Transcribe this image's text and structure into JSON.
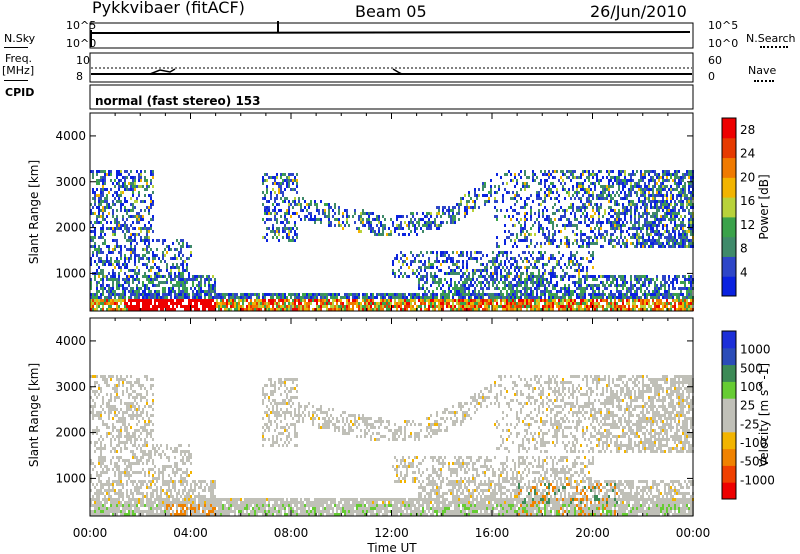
{
  "header": {
    "station": "Pykkvibaer (fitACF)",
    "beam": "Beam 05",
    "date": "26/Jun/2010"
  },
  "panels": {
    "nsky_label": "N.Sky",
    "nsky_ticks": [
      "10^5",
      "10^0"
    ],
    "nsearch_label": "N.Search",
    "nsearch_ticks": [
      "10^5",
      "10^0"
    ],
    "freq_label_1": "Freq.",
    "freq_label_2": "[MHz]",
    "freq_ticks": [
      "10",
      "8"
    ],
    "nave_label": "Nave",
    "nave_ticks": [
      "60",
      "0"
    ],
    "cpid_label": "CPID",
    "cpid_text": "normal (fast stereo) 153"
  },
  "xaxis": {
    "title": "Time UT",
    "ticks": [
      "00:00",
      "04:00",
      "08:00",
      "12:00",
      "16:00",
      "20:00",
      "00:00"
    ]
  },
  "colors": {
    "power_scale": [
      "#0a22e0",
      "#2e46c8",
      "#3f8a6a",
      "#3aa24a",
      "#b8d23a",
      "#f2b400",
      "#f07a00",
      "#e63a00",
      "#ee0000"
    ],
    "velocity_scale": [
      "#ee0000",
      "#f04000",
      "#f08200",
      "#f2b400",
      "#c0c0b8",
      "#c0c0b8",
      "#66cc33",
      "#3c8a56",
      "#2b4cb8",
      "#1c2fd8"
    ]
  },
  "chart_data": [
    {
      "type": "heatmap",
      "title": "Power",
      "xlabel": "",
      "ylabel": "Slant Range [km]",
      "xlim": [
        0,
        24
      ],
      "ylim": [
        180,
        4500
      ],
      "yticks": [
        "1000",
        "2000",
        "3000",
        "4000"
      ],
      "colorbar_label": "Power [dB]",
      "colorbar_ticks": [
        "4",
        "8",
        "12",
        "16",
        "20",
        "24",
        "28"
      ],
      "colorbar_range": [
        0,
        30
      ]
    },
    {
      "type": "heatmap",
      "title": "Velocity",
      "xlabel": "Time UT",
      "ylabel": "Slant Range [km]",
      "xlim": [
        0,
        24
      ],
      "ylim": [
        180,
        4500
      ],
      "yticks": [
        "1000",
        "2000",
        "3000",
        "4000"
      ],
      "colorbar_label": "Velocity [m s^-1]",
      "colorbar_ticks": [
        "1000",
        "500",
        "100",
        "25",
        "-25",
        "-100",
        "-500",
        "-1000"
      ]
    }
  ]
}
